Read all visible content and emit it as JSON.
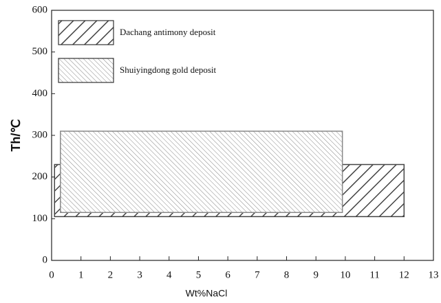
{
  "chart_data": {
    "type": "range",
    "xlabel": "Wt%NaCl",
    "ylabel": "Th/℃",
    "xlim": [
      0,
      13
    ],
    "xticks": [
      0,
      1,
      2,
      3,
      4,
      5,
      6,
      7,
      8,
      9,
      10,
      11,
      12,
      13
    ],
    "ylim": [
      0,
      600
    ],
    "yticks": [
      0,
      100,
      200,
      300,
      400,
      500,
      600
    ],
    "legend": "upper left",
    "series": [
      {
        "name": "Dachang antimony deposit",
        "color": "#444444",
        "pattern": "sparse-back",
        "x": [
          0.1,
          12
        ],
        "y": [
          105,
          230
        ]
      },
      {
        "name": "Shuiyingdong gold deposit",
        "color": "#888888",
        "pattern": "dense-forward",
        "x": [
          0.3,
          9.9
        ],
        "y": [
          115,
          310
        ]
      }
    ]
  }
}
